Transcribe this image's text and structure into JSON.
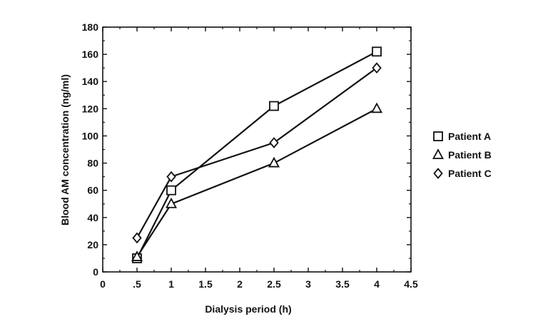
{
  "chart_data": {
    "type": "line",
    "xlabel": "Dialysis period (h)",
    "ylabel": "Blood AM concentration (ng/ml)",
    "xlim": [
      0,
      4.5
    ],
    "ylim": [
      0,
      180
    ],
    "xticks": [
      0,
      0.5,
      1,
      1.5,
      2,
      2.5,
      3,
      3.5,
      4,
      4.5
    ],
    "xtick_labels": [
      "0",
      ".5",
      "1",
      "1.5",
      "2",
      "2.5",
      "3",
      "3.5",
      "4",
      "4.5"
    ],
    "yticks": [
      0,
      20,
      40,
      60,
      80,
      100,
      120,
      140,
      160,
      180
    ],
    "ytick_labels": [
      "0",
      "20",
      "40",
      "60",
      "80",
      "100",
      "120",
      "140",
      "160",
      "180"
    ],
    "grid": false,
    "legend_position": "right",
    "series": [
      {
        "name": "Patient A",
        "marker": "square",
        "x": [
          0.5,
          1,
          2.5,
          4
        ],
        "y": [
          10,
          60,
          122,
          162
        ]
      },
      {
        "name": "Patient B",
        "marker": "triangle",
        "x": [
          0.5,
          1,
          2.5,
          4
        ],
        "y": [
          11,
          50,
          80,
          120
        ]
      },
      {
        "name": "Patient C",
        "marker": "diamond",
        "x": [
          0.5,
          1,
          2.5,
          4
        ],
        "y": [
          25,
          70,
          95,
          150
        ]
      }
    ],
    "colors": {
      "line": "#111111",
      "marker_fill": "#ffffff"
    }
  }
}
